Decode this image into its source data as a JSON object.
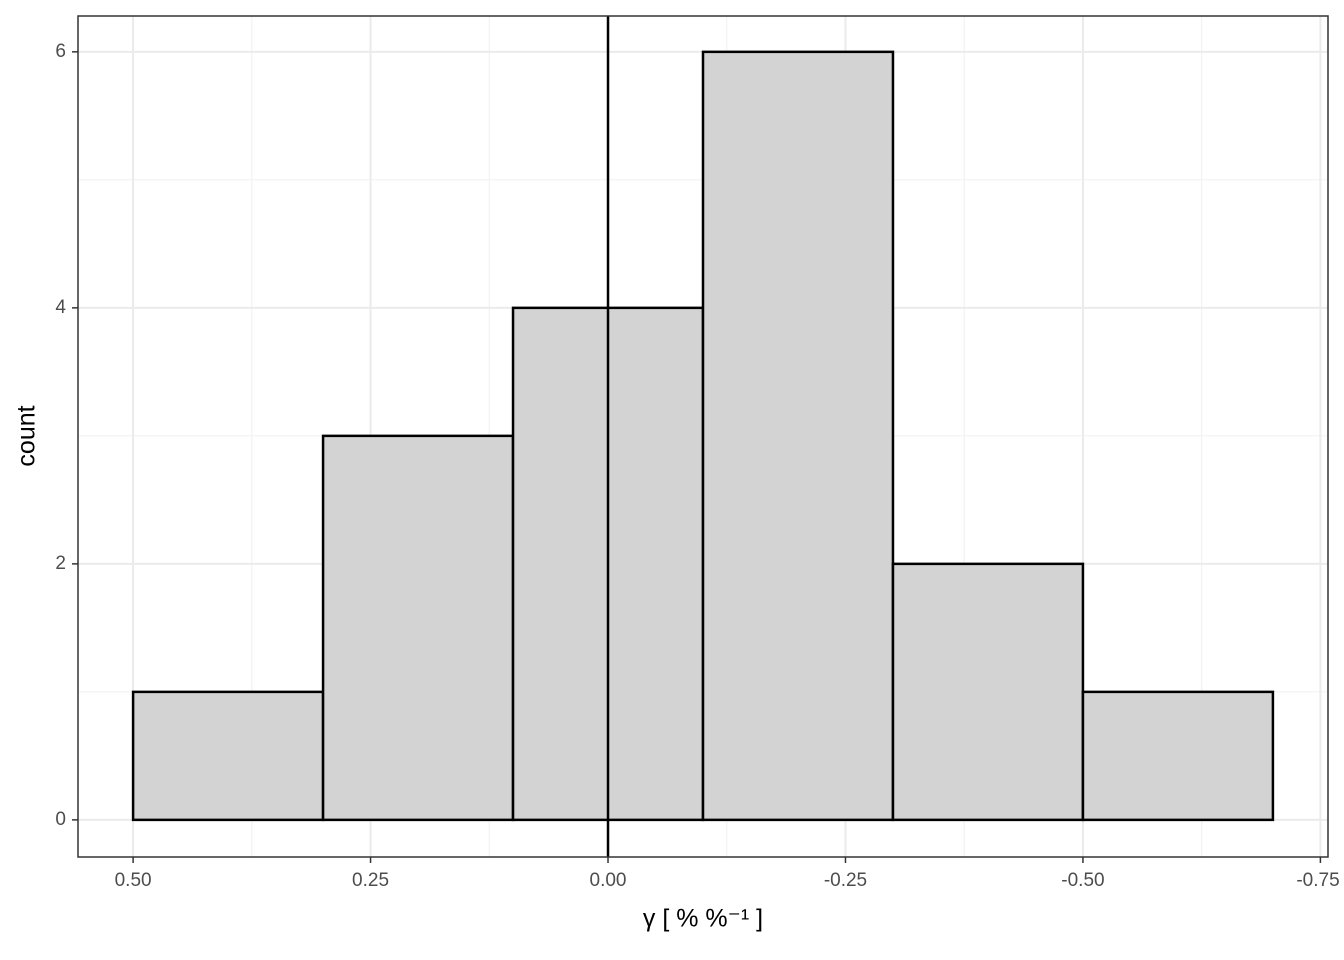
{
  "chart_data": {
    "type": "histogram",
    "xlabel": "γ [ % %⁻¹ ]",
    "ylabel": "count",
    "bins": [
      0.5,
      0.3,
      0.1,
      -0.1,
      -0.3,
      -0.5,
      -0.7
    ],
    "values": [
      1,
      3,
      4,
      6,
      2,
      1
    ],
    "color": "#d3d3d3",
    "edgecolor": "#000000",
    "xlim": [
      0.558,
      -0.758
    ],
    "xticks": [
      {
        "value": 0.5,
        "label": "0.50"
      },
      {
        "value": 0.25,
        "label": "0.25"
      },
      {
        "value": 0,
        "label": "0.00"
      },
      {
        "value": -0.25,
        "label": "-0.25"
      },
      {
        "value": -0.5,
        "label": "-0.50"
      },
      {
        "value": -0.75,
        "label": "-0.75"
      }
    ],
    "ylim": [
      -0.29,
      6.28
    ],
    "yticks": [
      0,
      2,
      4,
      6
    ],
    "vline": 0,
    "grid": true
  }
}
